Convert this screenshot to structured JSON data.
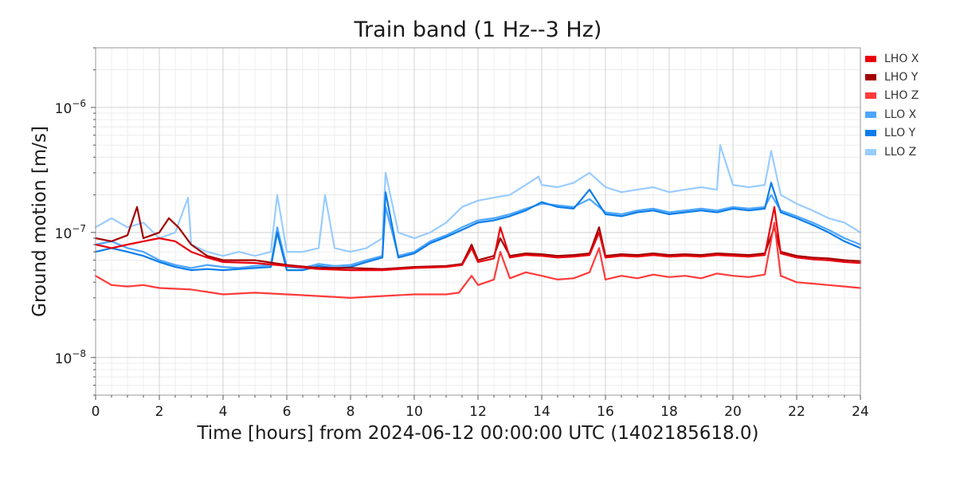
{
  "chart_data": {
    "type": "line",
    "title": "Train band (1 Hz--3 Hz)",
    "xlabel": "Time [hours] from 2024-06-12 00:00:00 UTC (1402185618.0)",
    "ylabel": "Ground motion [m/s]",
    "xlim": [
      0,
      24
    ],
    "ylim": [
      5e-09,
      3e-06
    ],
    "yscale": "log",
    "grid": true,
    "legend_position": "outside-right",
    "x_ticks": [
      0,
      2,
      4,
      6,
      8,
      10,
      12,
      14,
      16,
      18,
      20,
      22,
      24
    ],
    "x_tick_labels": [
      "0",
      "2",
      "4",
      "6",
      "8",
      "10",
      "12",
      "14",
      "16",
      "18",
      "20",
      "22",
      "24"
    ],
    "y_ticks": [
      1e-08,
      1e-07,
      1e-06
    ],
    "y_tick_bases": [
      "10",
      "10",
      "10"
    ],
    "y_tick_exponents": [
      "−8",
      "−7",
      "−6"
    ],
    "series": [
      {
        "name": "LLO Z",
        "color": "#99ccff",
        "x": [
          0,
          0.5,
          1,
          1.5,
          2,
          2.5,
          2.9,
          3,
          3.5,
          4,
          4.5,
          5,
          5.5,
          5.7,
          6,
          6.5,
          7,
          7.2,
          7.5,
          8,
          8.5,
          9,
          9.1,
          9.5,
          10,
          10.5,
          11,
          11.5,
          12,
          12.5,
          13,
          13.5,
          13.9,
          14,
          14.5,
          15,
          15.5,
          16,
          16.5,
          17,
          17.5,
          18,
          18.5,
          19,
          19.5,
          19.6,
          20,
          20.5,
          21,
          21.2,
          21.5,
          22,
          22.5,
          23,
          23.5,
          24
        ],
        "y": [
          1.1e-07,
          1.3e-07,
          1.1e-07,
          1.2e-07,
          9e-08,
          1e-07,
          1.9e-07,
          8e-08,
          7e-08,
          6.5e-08,
          7e-08,
          6.5e-08,
          7e-08,
          2e-07,
          7e-08,
          7e-08,
          7.5e-08,
          2e-07,
          7.5e-08,
          7e-08,
          7.5e-08,
          9e-08,
          3e-07,
          1e-07,
          9e-08,
          1e-07,
          1.2e-07,
          1.6e-07,
          1.8e-07,
          1.9e-07,
          2e-07,
          2.4e-07,
          2.8e-07,
          2.4e-07,
          2.3e-07,
          2.5e-07,
          3e-07,
          2.3e-07,
          2.1e-07,
          2.2e-07,
          2.3e-07,
          2.1e-07,
          2.2e-07,
          2.3e-07,
          2.2e-07,
          5e-07,
          2.4e-07,
          2.3e-07,
          2.4e-07,
          4.5e-07,
          2e-07,
          1.7e-07,
          1.5e-07,
          1.3e-07,
          1.2e-07,
          1e-07
        ]
      },
      {
        "name": "LLO X",
        "color": "#4da6ff",
        "x": [
          0,
          0.5,
          1,
          1.5,
          2,
          2.5,
          3,
          3.5,
          4,
          4.5,
          5,
          5.5,
          5.7,
          6,
          6.5,
          7,
          7.5,
          8,
          8.5,
          9,
          9.1,
          9.5,
          10,
          10.5,
          11,
          11.5,
          12,
          12.5,
          13,
          13.5,
          14,
          14.5,
          15,
          15.5,
          16,
          16.5,
          17,
          17.5,
          18,
          18.5,
          19,
          19.5,
          20,
          20.5,
          21,
          21.2,
          21.5,
          22,
          22.5,
          23,
          23.5,
          24
        ],
        "y": [
          8e-08,
          8.5e-08,
          7.5e-08,
          7e-08,
          6e-08,
          5.5e-08,
          5.2e-08,
          5.5e-08,
          5.3e-08,
          5.2e-08,
          5.4e-08,
          5.5e-08,
          1.1e-07,
          5.3e-08,
          5.2e-08,
          5.6e-08,
          5.4e-08,
          5.5e-08,
          6e-08,
          6.5e-08,
          1.6e-07,
          6.5e-08,
          7e-08,
          8.5e-08,
          9.5e-08,
          1.1e-07,
          1.25e-07,
          1.3e-07,
          1.4e-07,
          1.55e-07,
          1.7e-07,
          1.65e-07,
          1.6e-07,
          1.85e-07,
          1.45e-07,
          1.4e-07,
          1.5e-07,
          1.55e-07,
          1.45e-07,
          1.5e-07,
          1.55e-07,
          1.5e-07,
          1.6e-07,
          1.55e-07,
          1.6e-07,
          2e-07,
          1.5e-07,
          1.35e-07,
          1.2e-07,
          1.05e-07,
          9e-08,
          8e-08
        ]
      },
      {
        "name": "LLO Y",
        "color": "#0a7dea",
        "x": [
          0,
          0.5,
          1,
          1.5,
          2,
          2.5,
          3,
          3.5,
          4,
          4.5,
          5,
          5.5,
          5.7,
          6,
          6.5,
          7,
          7.5,
          8,
          8.5,
          9,
          9.1,
          9.5,
          10,
          10.5,
          11,
          11.5,
          12,
          12.5,
          13,
          13.5,
          14,
          14.5,
          15,
          15.5,
          16,
          16.5,
          17,
          17.5,
          18,
          18.5,
          19,
          19.5,
          20,
          20.5,
          21,
          21.2,
          21.5,
          22,
          22.5,
          23,
          23.5,
          24
        ],
        "y": [
          7e-08,
          7.5e-08,
          7e-08,
          6.5e-08,
          5.8e-08,
          5.3e-08,
          5e-08,
          5.1e-08,
          5e-08,
          5.1e-08,
          5.2e-08,
          5.3e-08,
          1e-07,
          5e-08,
          5e-08,
          5.4e-08,
          5.2e-08,
          5.3e-08,
          5.8e-08,
          6.3e-08,
          2.1e-07,
          6.3e-08,
          6.8e-08,
          8.2e-08,
          9.2e-08,
          1.05e-07,
          1.2e-07,
          1.25e-07,
          1.35e-07,
          1.5e-07,
          1.75e-07,
          1.6e-07,
          1.55e-07,
          2.2e-07,
          1.4e-07,
          1.35e-07,
          1.45e-07,
          1.5e-07,
          1.4e-07,
          1.45e-07,
          1.5e-07,
          1.45e-07,
          1.55e-07,
          1.5e-07,
          1.55e-07,
          2.5e-07,
          1.45e-07,
          1.3e-07,
          1.15e-07,
          1e-07,
          8.5e-08,
          7.5e-08
        ]
      },
      {
        "name": "LHO Y",
        "color": "#a30000",
        "x": [
          0,
          0.5,
          1,
          1.3,
          1.4,
          1.5,
          2,
          2.3,
          2.6,
          3,
          3.5,
          4,
          5,
          6,
          7,
          8,
          9,
          10,
          11,
          11.5,
          11.8,
          12,
          12.5,
          12.7,
          13,
          13.5,
          14,
          14.5,
          15,
          15.5,
          15.8,
          16,
          16.5,
          17,
          17.5,
          18,
          18.5,
          19,
          19.5,
          20,
          20.5,
          21,
          21.3,
          21.5,
          22,
          22.5,
          23,
          23.5,
          24
        ],
        "y": [
          9e-08,
          8.5e-08,
          9.5e-08,
          1.6e-07,
          1.2e-07,
          9e-08,
          1e-07,
          1.3e-07,
          1.1e-07,
          8e-08,
          6.5e-08,
          6e-08,
          6e-08,
          5.5e-08,
          5.2e-08,
          5.2e-08,
          5.1e-08,
          5.3e-08,
          5.4e-08,
          5.6e-08,
          8e-08,
          6e-08,
          6.5e-08,
          9e-08,
          6.5e-08,
          6.8e-08,
          6.7e-08,
          6.5e-08,
          6.6e-08,
          6.8e-08,
          1.1e-07,
          6.5e-08,
          6.7e-08,
          6.6e-08,
          6.8e-08,
          6.6e-08,
          6.7e-08,
          6.6e-08,
          6.8e-08,
          6.7e-08,
          6.6e-08,
          6.8e-08,
          1.1e-07,
          7e-08,
          6.5e-08,
          6.3e-08,
          6.2e-08,
          6e-08,
          5.9e-08
        ]
      },
      {
        "name": "LHO X",
        "color": "#e8000b",
        "x": [
          0,
          0.5,
          1,
          1.5,
          2,
          2.5,
          3,
          3.5,
          4,
          5,
          6,
          7,
          8,
          9,
          10,
          11,
          11.5,
          11.8,
          12,
          12.5,
          12.7,
          13,
          13.5,
          14,
          14.5,
          15,
          15.5,
          15.8,
          16,
          16.5,
          17,
          17.5,
          18,
          18.5,
          19,
          19.5,
          20,
          20.5,
          21,
          21.3,
          21.5,
          22,
          22.5,
          23,
          23.5,
          24
        ],
        "y": [
          8e-08,
          7.5e-08,
          8e-08,
          8.5e-08,
          9e-08,
          8.5e-08,
          7e-08,
          6.3e-08,
          5.8e-08,
          5.7e-08,
          5.4e-08,
          5.1e-08,
          5e-08,
          5e-08,
          5.2e-08,
          5.3e-08,
          5.5e-08,
          7.5e-08,
          5.8e-08,
          6.2e-08,
          1.1e-07,
          6.3e-08,
          6.6e-08,
          6.5e-08,
          6.3e-08,
          6.4e-08,
          6.6e-08,
          1e-07,
          6.3e-08,
          6.5e-08,
          6.4e-08,
          6.6e-08,
          6.4e-08,
          6.5e-08,
          6.4e-08,
          6.6e-08,
          6.5e-08,
          6.4e-08,
          6.6e-08,
          1.6e-07,
          6.8e-08,
          6.3e-08,
          6.1e-08,
          6e-08,
          5.8e-08,
          5.7e-08
        ]
      },
      {
        "name": "LHO Z",
        "color": "#ff3b3b",
        "x": [
          0,
          0.5,
          1,
          1.5,
          2,
          3,
          4,
          5,
          6,
          7,
          8,
          9,
          10,
          11,
          11.4,
          11.8,
          12,
          12.5,
          12.7,
          13,
          13.5,
          14,
          14.5,
          15,
          15.5,
          15.8,
          16,
          16.5,
          17,
          17.5,
          18,
          18.5,
          19,
          19.5,
          20,
          20.5,
          21,
          21.3,
          21.5,
          22,
          22.5,
          23,
          23.5,
          24
        ],
        "y": [
          4.5e-08,
          3.8e-08,
          3.7e-08,
          3.8e-08,
          3.6e-08,
          3.5e-08,
          3.2e-08,
          3.3e-08,
          3.2e-08,
          3.1e-08,
          3e-08,
          3.1e-08,
          3.2e-08,
          3.2e-08,
          3.3e-08,
          4.5e-08,
          3.8e-08,
          4.2e-08,
          7e-08,
          4.3e-08,
          4.8e-08,
          4.5e-08,
          4.2e-08,
          4.3e-08,
          4.8e-08,
          7.5e-08,
          4.2e-08,
          4.5e-08,
          4.3e-08,
          4.6e-08,
          4.4e-08,
          4.5e-08,
          4.3e-08,
          4.7e-08,
          4.5e-08,
          4.4e-08,
          4.6e-08,
          1.2e-07,
          4.5e-08,
          4e-08,
          3.9e-08,
          3.8e-08,
          3.7e-08,
          3.6e-08
        ]
      }
    ],
    "legend_order": [
      "LHO X",
      "LHO Y",
      "LHO Z",
      "LLO X",
      "LLO Y",
      "LLO Z"
    ]
  }
}
